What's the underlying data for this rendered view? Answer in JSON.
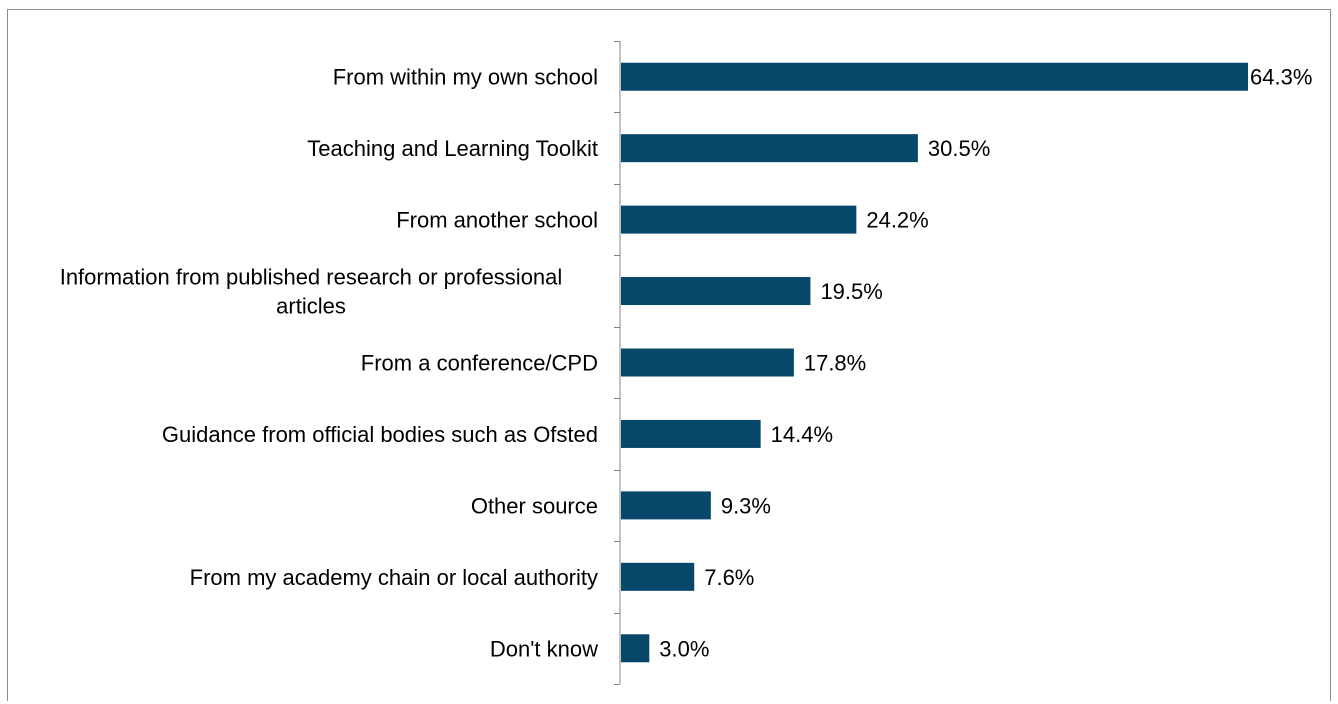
{
  "chart_data": {
    "type": "bar",
    "orientation": "horizontal",
    "categories": [
      [
        "From within my own school"
      ],
      [
        "Teaching and Learning Toolkit"
      ],
      [
        "From another school"
      ],
      [
        "Information from published research or professional",
        "articles"
      ],
      [
        "From a conference/CPD"
      ],
      [
        "Guidance from official bodies such as Ofsted"
      ],
      [
        "Other source"
      ],
      [
        "From my academy chain or local authority"
      ],
      [
        "Don't know"
      ]
    ],
    "values": [
      64.3,
      30.5,
      24.2,
      19.5,
      17.8,
      14.4,
      9.3,
      7.6,
      3.0
    ],
    "value_labels": [
      "64.3%",
      "30.5%",
      "24.2%",
      "19.5%",
      "17.8%",
      "14.4%",
      "9.3%",
      "7.6%",
      "3.0%"
    ],
    "xlim": [
      0,
      64.3
    ],
    "grid": false,
    "bar_color": "#07476a",
    "axis_color": "#868686"
  }
}
